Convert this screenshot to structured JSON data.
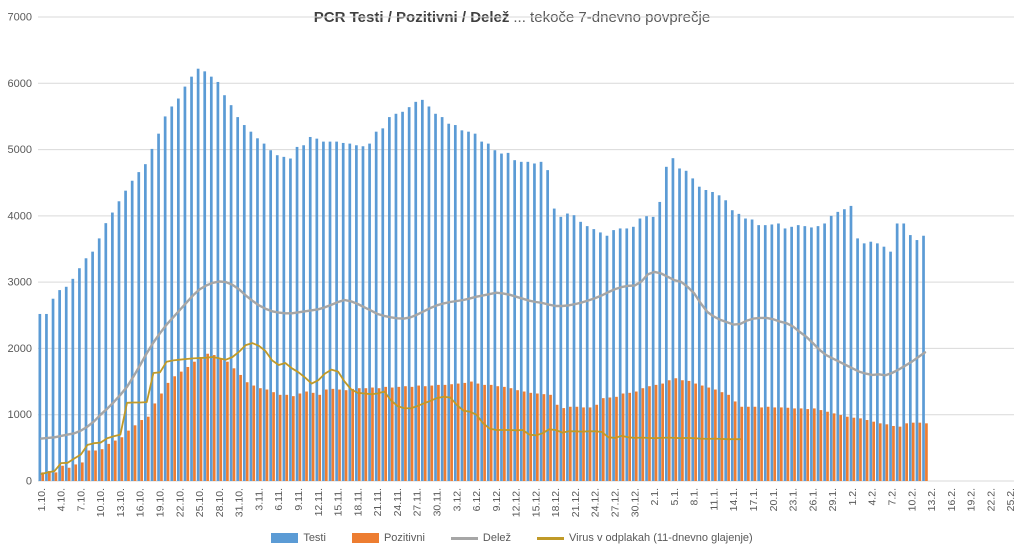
{
  "title": {
    "bold": "PCR Testi / Pozitivni / Delež",
    "rest": "... tekoče 7-dnevno povprečje"
  },
  "colors": {
    "testi": "#5B9BD5",
    "pozitivni": "#ED7D31",
    "delez": "#A6A6A6",
    "virus": "#C09A28",
    "gridline": "#D9D9D9",
    "axis_text": "#595959",
    "title_bold": "#3F3F3F",
    "title_rest": "#595959"
  },
  "chart_data": {
    "type": "bar",
    "title": "PCR Testi / Pozitivni / Delež ... tekoče 7-dnevno povprečje",
    "xlabel": "",
    "ylabel": "",
    "ylim": [
      0,
      7000
    ],
    "y_ticks": [
      0,
      1000,
      2000,
      3000,
      4000,
      5000,
      6000,
      7000
    ],
    "grid": true,
    "legend_position": "bottom",
    "axis_total_days": 148,
    "tick_interval_days": 3,
    "x_tick_labels": [
      "1.10.",
      "4.10.",
      "7.10.",
      "10.10.",
      "13.10.",
      "16.10.",
      "19.10.",
      "22.10.",
      "25.10.",
      "28.10.",
      "31.10.",
      "3.11.",
      "6.11.",
      "9.11.",
      "12.11.",
      "15.11.",
      "18.11.",
      "21.11.",
      "24.11.",
      "27.11.",
      "30.11.",
      "3.12.",
      "6.12.",
      "9.12.",
      "12.12.",
      "15.12.",
      "18.12.",
      "21.12.",
      "24.12.",
      "27.12.",
      "30.12.",
      "2.1.",
      "5.1.",
      "8.1.",
      "11.1.",
      "14.1.",
      "17.1.",
      "20.1.",
      "23.1.",
      "26.1.",
      "29.1.",
      "1.2.",
      "4.2.",
      "7.2.",
      "10.2.",
      "13.2.",
      "16.2.",
      "19.2.",
      "22.2.",
      "25.2."
    ],
    "series": [
      {
        "name": "Testi",
        "type": "bar",
        "color": "#5B9BD5",
        "values": [
          2520,
          2520,
          2750,
          2880,
          2930,
          3050,
          3210,
          3360,
          3460,
          3660,
          3890,
          4050,
          4220,
          4380,
          4530,
          4660,
          4780,
          5010,
          5240,
          5500,
          5650,
          5770,
          5950,
          6100,
          6220,
          6180,
          6100,
          6020,
          5820,
          5670,
          5490,
          5370,
          5270,
          5170,
          5090,
          4990,
          4915,
          4890,
          4865,
          5040,
          5065,
          5190,
          5165,
          5120,
          5120,
          5120,
          5100,
          5090,
          5065,
          5050,
          5090,
          5270,
          5320,
          5490,
          5540,
          5570,
          5640,
          5720,
          5750,
          5650,
          5540,
          5490,
          5390,
          5370,
          5290,
          5270,
          5240,
          5120,
          5090,
          4990,
          4940,
          4950,
          4840,
          4815,
          4815,
          4790,
          4815,
          4690,
          4110,
          3985,
          4035,
          4010,
          3910,
          3845,
          3800,
          3750,
          3700,
          3785,
          3810,
          3810,
          3835,
          3960,
          3995,
          3985,
          4210,
          4740,
          4870,
          4715,
          4680,
          4565,
          4440,
          4390,
          4360,
          4310,
          4235,
          4085,
          4030,
          3960,
          3945,
          3860,
          3860,
          3870,
          3885,
          3810,
          3835,
          3860,
          3845,
          3825,
          3845,
          3885,
          4000,
          4060,
          4100,
          4150,
          3660,
          3585,
          3610,
          3585,
          3535,
          3460,
          3885,
          3885,
          3710,
          3635,
          3700
        ]
      },
      {
        "name": "Pozitivni",
        "type": "bar",
        "color": "#ED7D31",
        "values": [
          130,
          150,
          130,
          230,
          200,
          250,
          280,
          460,
          460,
          480,
          560,
          610,
          660,
          760,
          840,
          920,
          970,
          1170,
          1320,
          1480,
          1580,
          1650,
          1720,
          1800,
          1870,
          1920,
          1900,
          1850,
          1800,
          1700,
          1600,
          1490,
          1440,
          1400,
          1380,
          1340,
          1300,
          1300,
          1280,
          1320,
          1350,
          1330,
          1300,
          1380,
          1390,
          1380,
          1370,
          1390,
          1400,
          1400,
          1410,
          1400,
          1420,
          1410,
          1420,
          1430,
          1420,
          1440,
          1430,
          1440,
          1450,
          1450,
          1460,
          1470,
          1480,
          1500,
          1470,
          1450,
          1450,
          1430,
          1420,
          1400,
          1370,
          1350,
          1330,
          1320,
          1310,
          1300,
          1150,
          1100,
          1120,
          1120,
          1110,
          1110,
          1150,
          1250,
          1260,
          1270,
          1320,
          1330,
          1350,
          1400,
          1430,
          1450,
          1470,
          1520,
          1550,
          1520,
          1510,
          1470,
          1440,
          1410,
          1380,
          1340,
          1300,
          1200,
          1120,
          1120,
          1120,
          1110,
          1120,
          1110,
          1110,
          1105,
          1095,
          1095,
          1085,
          1095,
          1070,
          1045,
          1020,
          995,
          970,
          955,
          945,
          920,
          895,
          870,
          855,
          830,
          820,
          870,
          880,
          880,
          870
        ]
      },
      {
        "name": "Delež",
        "type": "line",
        "color": "#A6A6A6",
        "values": [
          640,
          650,
          660,
          680,
          700,
          720,
          760,
          820,
          900,
          1000,
          1090,
          1190,
          1300,
          1420,
          1580,
          1750,
          1930,
          2090,
          2230,
          2360,
          2470,
          2580,
          2690,
          2800,
          2890,
          2950,
          2990,
          3010,
          3000,
          2960,
          2890,
          2800,
          2720,
          2650,
          2600,
          2560,
          2540,
          2530,
          2530,
          2545,
          2560,
          2575,
          2590,
          2620,
          2660,
          2700,
          2730,
          2710,
          2670,
          2620,
          2570,
          2520,
          2490,
          2470,
          2455,
          2450,
          2470,
          2510,
          2560,
          2610,
          2650,
          2680,
          2700,
          2715,
          2730,
          2755,
          2780,
          2800,
          2820,
          2840,
          2830,
          2810,
          2780,
          2750,
          2720,
          2700,
          2685,
          2660,
          2640,
          2640,
          2650,
          2670,
          2695,
          2725,
          2760,
          2800,
          2850,
          2895,
          2925,
          2945,
          2950,
          3010,
          3120,
          3155,
          3130,
          3080,
          3030,
          3005,
          2930,
          2830,
          2680,
          2550,
          2480,
          2430,
          2395,
          2360,
          2370,
          2420,
          2450,
          2460,
          2460,
          2440,
          2405,
          2380,
          2330,
          2250,
          2175,
          2080,
          1980,
          1900,
          1850,
          1800,
          1750,
          1700,
          1650,
          1620,
          1600,
          1610,
          1595,
          1630,
          1680,
          1740,
          1800,
          1870,
          1940
        ]
      },
      {
        "name": "Virus v odplakah (11-dnevno glajenje)",
        "type": "line",
        "color": "#C09A28",
        "values": [
          105,
          130,
          150,
          270,
          275,
          340,
          400,
          545,
          570,
          580,
          645,
          675,
          700,
          1180,
          1185,
          1185,
          1190,
          1630,
          1640,
          1800,
          1820,
          1830,
          1840,
          1850,
          1855,
          1860,
          1870,
          1850,
          1830,
          1870,
          1950,
          2050,
          2080,
          2040,
          1960,
          1820,
          1750,
          1780,
          1700,
          1640,
          1560,
          1470,
          1520,
          1620,
          1680,
          1650,
          1500,
          1380,
          1330,
          1320,
          1310,
          1320,
          1350,
          1220,
          1130,
          1100,
          1095,
          1130,
          1170,
          1210,
          1250,
          1270,
          1260,
          1150,
          1060,
          1045,
          1000,
          870,
          790,
          770,
          770,
          770,
          765,
          770,
          700,
          690,
          720,
          780,
          770,
          730,
          750,
          750,
          745,
          750,
          750,
          740,
          660,
          650,
          680,
          660,
          650,
          655,
          650,
          645,
          650,
          655,
          650,
          645,
          650,
          645,
          640,
          635,
          640,
          635,
          630,
          630,
          630
        ]
      }
    ]
  },
  "legend": {
    "items": [
      "Testi",
      "Pozitivni",
      "Delež",
      "Virus v odplakah (11-dnevno glajenje)"
    ]
  }
}
